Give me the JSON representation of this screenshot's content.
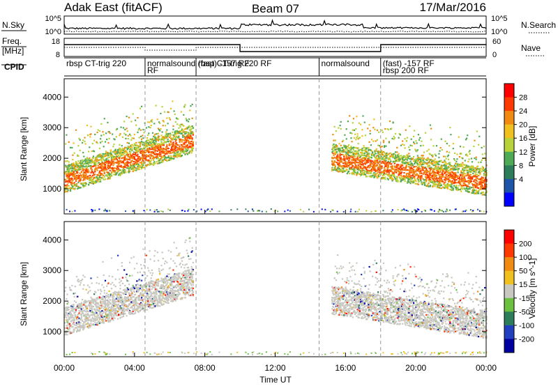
{
  "header": {
    "title_left": "Adak East (fitACF)",
    "title_center": "Beam 07",
    "title_right": "17/Mar/2016"
  },
  "panels": {
    "nsky": {
      "label": "N.Sky",
      "left_ticks": [
        "10^5",
        "10^0"
      ],
      "right_ticks": [
        "10^5",
        "10^0"
      ],
      "right_label": "N.Search"
    },
    "freq": {
      "label_line1": "Freq.",
      "label_line2": "[MHz]",
      "left_ticks": [
        "18",
        "8"
      ],
      "right_ticks": [
        "60",
        "0"
      ],
      "right_label": "Nave"
    },
    "cpid": {
      "label": "CPID",
      "segments": [
        {
          "start": 0.0,
          "end": 4.6,
          "label": "rbsp CT-trig 220"
        },
        {
          "start": 4.6,
          "end": 7.5,
          "label": "normalsound (fast) -157 RF",
          "second_line": "RF"
        },
        {
          "start": 7.5,
          "end": 14.5,
          "label": "rbsp CT-trig 220 RF"
        },
        {
          "start": 14.5,
          "end": 18.0,
          "label": "normalsound"
        },
        {
          "start": 18.0,
          "end": 24.0,
          "label": "(fast) -157 RF",
          "second_line": "rbsp 200 RF"
        }
      ]
    }
  },
  "colorbars": {
    "power": {
      "label": "Power [dB]",
      "ticks": [
        "28",
        "24",
        "20",
        "16",
        "12",
        "8",
        "4"
      ],
      "colors": [
        "#0000ff",
        "#1f55a8",
        "#2e7d5a",
        "#4faa55",
        "#b8d23a",
        "#f0c020",
        "#f08a10",
        "#ff3a00",
        "#ff0000"
      ]
    },
    "velocity": {
      "label": "Velocity [m s^-1]",
      "ticks": [
        "200",
        "100",
        "50",
        "15",
        "-15",
        "-50",
        "-100",
        "-200"
      ],
      "colors": [
        "#0000a0",
        "#2040c0",
        "#2e7d5a",
        "#6cc040",
        "#c8c8c0",
        "#f0c020",
        "#f08a10",
        "#ff3a00",
        "#ff0000"
      ]
    }
  },
  "axes": {
    "ylabel": "Slant Range [km]",
    "yticks": [
      "4000",
      "3000",
      "2000",
      "1000"
    ],
    "xlabel": "Time UT",
    "xticks": [
      "00:00",
      "04:00",
      "08:00",
      "12:00",
      "16:00",
      "20:00",
      "00:00"
    ]
  },
  "chart_data": {
    "type": "heatmap",
    "x_range_hours": [
      0,
      24
    ],
    "y_range_km": [
      180,
      4600
    ],
    "mode_boundaries_hours": [
      4.6,
      7.5,
      14.5,
      18.0
    ],
    "power_scatter_bands": [
      {
        "t_start": 0.0,
        "t_end": 7.3,
        "range_km_start": 1300,
        "range_km_end": 2600,
        "power_db": 20
      },
      {
        "t_start": 15.2,
        "t_end": 24.0,
        "range_km_start": 2000,
        "range_km_end": 1200,
        "power_db": 18
      }
    ],
    "velocity_scatter_bands": [
      {
        "t_start": 0.0,
        "t_end": 7.3,
        "range_km_start": 1300,
        "range_km_end": 2600,
        "velocity_ms": 0
      },
      {
        "t_start": 15.2,
        "t_end": 24.0,
        "range_km_start": 2000,
        "range_km_end": 1200,
        "velocity_ms": 0
      }
    ]
  }
}
